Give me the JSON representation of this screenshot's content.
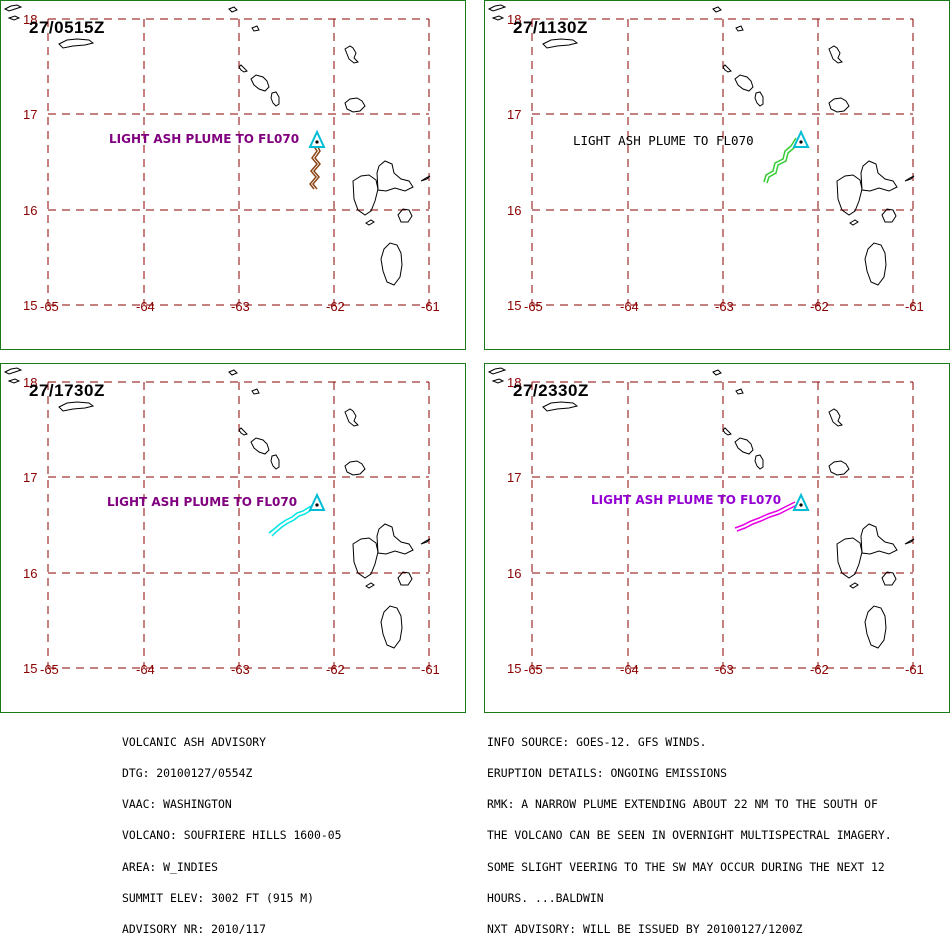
{
  "colors": {
    "grid": "#8b0000",
    "border": "#1a7a1a",
    "volcano": "#00bcd4",
    "coast": "#000000"
  },
  "map": {
    "lat_labels": [
      "18",
      "17",
      "16",
      "15"
    ],
    "lon_labels": [
      "-65",
      "-64",
      "-63",
      "-62",
      "-61"
    ]
  },
  "panels": [
    {
      "timestamp": "27/0515Z",
      "plume_label": "LIGHT ASH PLUME TO FL070",
      "label_color": "#800080",
      "plume_color": "#8b4513"
    },
    {
      "timestamp": "27/1130Z",
      "plume_label": "LIGHT ASH PLUME TO FL070",
      "label_color": "#000000",
      "plume_color": "#32cd32"
    },
    {
      "timestamp": "27/1730Z",
      "plume_label": "LIGHT ASH PLUME TO FL070",
      "label_color": "#800080",
      "plume_color": "#00e5e5"
    },
    {
      "timestamp": "27/2330Z",
      "plume_label": "LIGHT ASH PLUME TO FL070",
      "label_color": "#9400d3",
      "plume_color": "#e600e6"
    }
  ],
  "advisory_left": [
    "VOLCANIC ASH ADVISORY",
    "DTG: 20100127/0554Z",
    "VAAC: WASHINGTON",
    "VOLCANO: SOUFRIERE HILLS 1600-05",
    "AREA: W_INDIES",
    "SUMMIT ELEV: 3002 FT (915 M)",
    "ADVISORY NR: 2010/117"
  ],
  "advisory_right": [
    "INFO SOURCE: GOES-12. GFS WINDS.",
    "ERUPTION DETAILS: ONGOING EMISSIONS",
    "RMK: A NARROW PLUME EXTENDING ABOUT 22 NM TO THE SOUTH OF",
    "THE VOLCANO CAN BE SEEN IN OVERNIGHT MULTISPECTRAL IMAGERY.",
    "SOME SLIGHT VEERING TO THE SW MAY OCCUR DURING THE NEXT 12",
    "HOURS. ...BALDWIN",
    "NXT ADVISORY: WILL BE ISSUED BY 20100127/1200Z"
  ]
}
